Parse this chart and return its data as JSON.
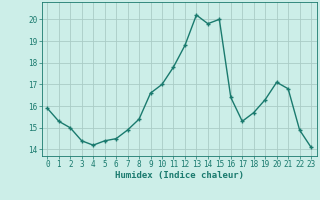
{
  "x": [
    0,
    1,
    2,
    3,
    4,
    5,
    6,
    7,
    8,
    9,
    10,
    11,
    12,
    13,
    14,
    15,
    16,
    17,
    18,
    19,
    20,
    21,
    22,
    23
  ],
  "y": [
    15.9,
    15.3,
    15.0,
    14.4,
    14.2,
    14.4,
    14.5,
    14.9,
    15.4,
    16.6,
    17.0,
    17.8,
    18.8,
    20.2,
    19.8,
    20.0,
    16.4,
    15.3,
    15.7,
    16.3,
    17.1,
    16.8,
    14.9,
    14.1
  ],
  "line_color": "#1a7a6e",
  "bg_color": "#cceee8",
  "grid_color": "#aaccc6",
  "xlabel": "Humidex (Indice chaleur)",
  "ylabel_ticks": [
    14,
    15,
    16,
    17,
    18,
    19,
    20
  ],
  "xlim": [
    -0.5,
    23.5
  ],
  "ylim": [
    13.7,
    20.8
  ],
  "marker": "P",
  "markersize": 2.5,
  "linewidth": 1.0,
  "xlabel_fontsize": 6.5,
  "tick_fontsize": 5.5
}
